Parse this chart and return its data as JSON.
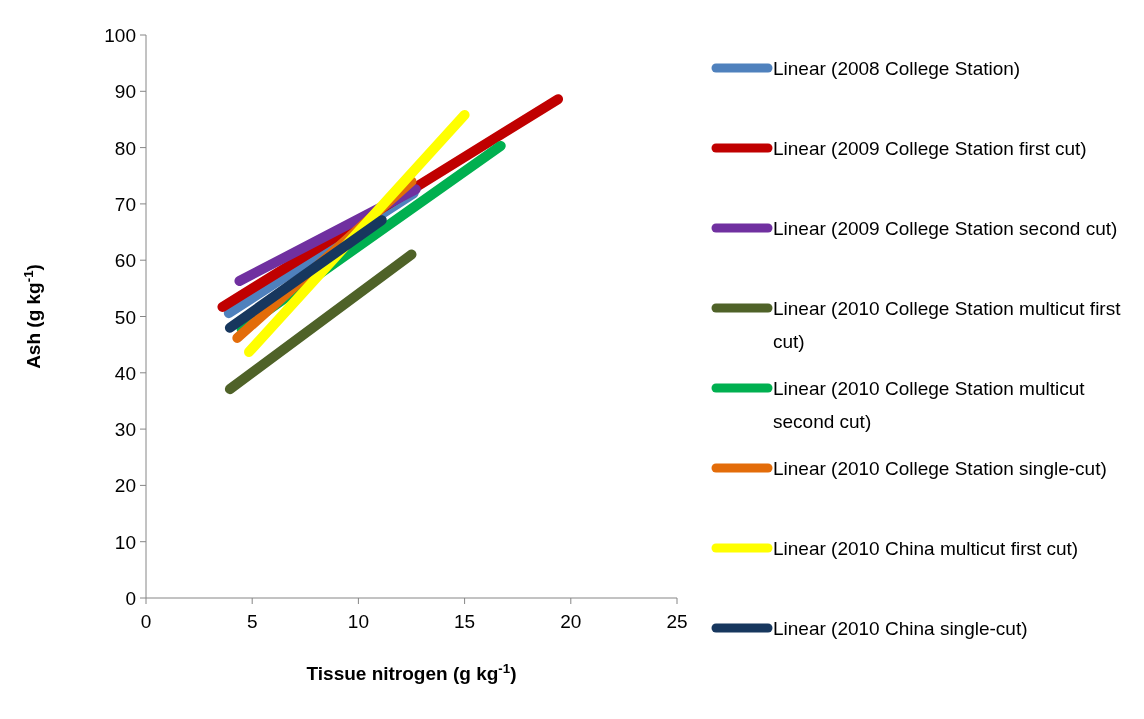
{
  "chart_data": {
    "type": "line",
    "xlabel": "Tissue nitrogen (g kg$^{-1}$)",
    "ylabel": "Ash (g kg$^{-1}$)",
    "xlim": [
      0,
      25
    ],
    "xticks": [
      0,
      5,
      10,
      15,
      20,
      25
    ],
    "ylim": [
      0,
      100
    ],
    "yticks": [
      0,
      10,
      20,
      30,
      40,
      50,
      60,
      70,
      80,
      90,
      100
    ],
    "grid": false,
    "legend": "right",
    "marker": "none",
    "line_style": "solid",
    "series": [
      {
        "name": "Linear (2008 College Station)",
        "color": "#4f81bd",
        "x": [
          3.9,
          12.6
        ],
        "values": [
          50.6,
          71.9
        ]
      },
      {
        "name": "Linear (2009 College Station first cut)",
        "color": "#c00000",
        "x": [
          3.6,
          19.4
        ],
        "values": [
          51.7,
          88.6
        ]
      },
      {
        "name": "Linear (2009 College Station second cut)",
        "color": "#7030a0",
        "x": [
          4.4,
          12.7
        ],
        "values": [
          56.3,
          72.6
        ]
      },
      {
        "name": "Linear (2010 College Station multicut first cut)",
        "color": "#4f6228",
        "x": [
          3.95,
          12.5
        ],
        "values": [
          37.1,
          61.0
        ]
      },
      {
        "name": "Linear (2010 College Station multicut second cut)",
        "color": "#00b050",
        "x": [
          4.5,
          16.7
        ],
        "values": [
          47.8,
          80.3
        ]
      },
      {
        "name": "Linear (2010 College Station single-cut)",
        "color": "#e36c09",
        "x": [
          4.3,
          12.5
        ],
        "values": [
          46.2,
          74.0
        ]
      },
      {
        "name": "Linear (2010 China multicut first cut)",
        "color": "#ffff00",
        "x": [
          4.85,
          15.0
        ],
        "values": [
          43.7,
          85.8
        ]
      },
      {
        "name": "Linear (2010 China single-cut)",
        "color": "#17375e",
        "x": [
          3.95,
          11.1
        ],
        "values": [
          48.0,
          67.1
        ]
      }
    ]
  }
}
